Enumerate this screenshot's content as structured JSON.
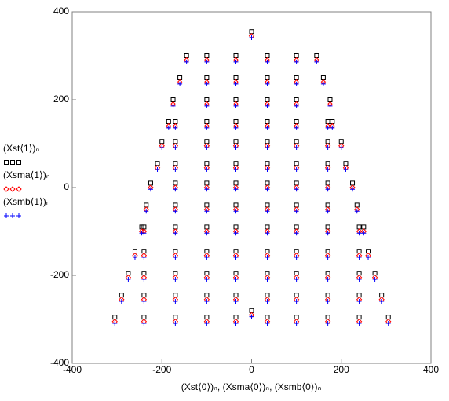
{
  "chart_data": {
    "type": "scatter",
    "x_label": "(Xst⟨0⟩)ₙ, (Xsma⟨0⟩)ₙ, (Xsmb⟨0⟩)ₙ",
    "xlim": [
      -400,
      400
    ],
    "xticks": [
      -400,
      -200,
      0,
      200,
      400
    ],
    "ylim": [
      -400,
      400
    ],
    "yticks": [
      -400,
      -200,
      0,
      200,
      400
    ],
    "series": [
      {
        "name": "(Xst⟨1⟩)ₙ",
        "color": "#000000",
        "marker": "square",
        "x": [
          0,
          -145,
          -100,
          -35,
          35,
          100,
          145,
          -160,
          -100,
          -35,
          35,
          100,
          160,
          -175,
          -100,
          -35,
          35,
          100,
          175,
          -185,
          -170,
          -100,
          -35,
          35,
          100,
          170,
          180,
          -200,
          -170,
          -100,
          -35,
          35,
          100,
          170,
          200,
          -210,
          -170,
          -100,
          -35,
          35,
          100,
          170,
          210,
          -225,
          -170,
          -100,
          -35,
          35,
          100,
          170,
          225,
          -235,
          -170,
          -100,
          -35,
          35,
          100,
          170,
          235,
          -245,
          -240,
          -170,
          -100,
          -35,
          35,
          100,
          170,
          240,
          250,
          -260,
          -240,
          -170,
          -100,
          -35,
          35,
          100,
          170,
          240,
          260,
          -275,
          -240,
          -170,
          -100,
          -35,
          35,
          100,
          170,
          240,
          275,
          -290,
          -240,
          -170,
          -100,
          -35,
          35,
          100,
          170,
          240,
          290,
          -305,
          -240,
          -170,
          -100,
          -35,
          0,
          35,
          100,
          170,
          240,
          305
        ],
        "y": [
          355,
          300,
          300,
          300,
          300,
          300,
          300,
          250,
          250,
          250,
          250,
          250,
          250,
          200,
          200,
          200,
          200,
          200,
          200,
          150,
          150,
          150,
          150,
          150,
          150,
          150,
          150,
          105,
          105,
          105,
          105,
          105,
          105,
          105,
          105,
          55,
          55,
          55,
          55,
          55,
          55,
          55,
          55,
          10,
          10,
          10,
          10,
          10,
          10,
          10,
          10,
          -40,
          -40,
          -40,
          -40,
          -40,
          -40,
          -40,
          -40,
          -90,
          -90,
          -90,
          -90,
          -90,
          -90,
          -90,
          -90,
          -90,
          -90,
          -145,
          -145,
          -145,
          -145,
          -145,
          -145,
          -145,
          -145,
          -145,
          -145,
          -195,
          -195,
          -195,
          -195,
          -195,
          -195,
          -195,
          -195,
          -195,
          -195,
          -245,
          -245,
          -245,
          -245,
          -245,
          -245,
          -245,
          -245,
          -245,
          -245,
          -295,
          -295,
          -295,
          -295,
          -295,
          -280,
          -295,
          -295,
          -295,
          -295,
          -295
        ]
      },
      {
        "name": "(Xsma⟨1⟩)ₙ",
        "color": "#ff0000",
        "marker": "diamond",
        "x": [
          0,
          -145,
          -100,
          -35,
          35,
          100,
          145,
          -160,
          -100,
          -35,
          35,
          100,
          160,
          -175,
          -100,
          -35,
          35,
          100,
          175,
          -185,
          -170,
          -100,
          -35,
          35,
          100,
          170,
          180,
          -200,
          -170,
          -100,
          -35,
          35,
          100,
          170,
          200,
          -210,
          -170,
          -100,
          -35,
          35,
          100,
          170,
          210,
          -225,
          -170,
          -100,
          -35,
          35,
          100,
          170,
          225,
          -235,
          -170,
          -100,
          -35,
          35,
          100,
          170,
          235,
          -245,
          -240,
          -170,
          -100,
          -35,
          35,
          100,
          170,
          240,
          250,
          -260,
          -240,
          -170,
          -100,
          -35,
          35,
          100,
          170,
          240,
          260,
          -275,
          -240,
          -170,
          -100,
          -35,
          35,
          100,
          170,
          240,
          275,
          -290,
          -240,
          -170,
          -100,
          -35,
          35,
          100,
          170,
          240,
          290,
          -305,
          -240,
          -170,
          -100,
          -35,
          0,
          35,
          100,
          170,
          240,
          305
        ],
        "y": [
          345,
          290,
          290,
          290,
          290,
          290,
          290,
          240,
          240,
          240,
          240,
          240,
          240,
          190,
          190,
          190,
          190,
          190,
          190,
          140,
          140,
          140,
          140,
          140,
          140,
          140,
          140,
          95,
          95,
          95,
          95,
          95,
          95,
          95,
          95,
          45,
          45,
          45,
          45,
          45,
          45,
          45,
          45,
          0,
          0,
          0,
          0,
          0,
          0,
          0,
          0,
          -50,
          -50,
          -50,
          -50,
          -50,
          -50,
          -50,
          -50,
          -100,
          -100,
          -100,
          -100,
          -100,
          -100,
          -100,
          -100,
          -100,
          -100,
          -155,
          -155,
          -155,
          -155,
          -155,
          -155,
          -155,
          -155,
          -155,
          -155,
          -205,
          -205,
          -205,
          -205,
          -205,
          -205,
          -205,
          -205,
          -205,
          -205,
          -255,
          -255,
          -255,
          -255,
          -255,
          -255,
          -255,
          -255,
          -255,
          -255,
          -305,
          -305,
          -305,
          -305,
          -305,
          -290,
          -305,
          -305,
          -305,
          -305,
          -305
        ]
      },
      {
        "name": "(Xsmb⟨1⟩)ₙ",
        "color": "#0000ff",
        "marker": "plus",
        "x": [
          0,
          -145,
          -100,
          -35,
          35,
          100,
          145,
          -160,
          -100,
          -35,
          35,
          100,
          160,
          -175,
          -100,
          -35,
          35,
          100,
          175,
          -185,
          -170,
          -100,
          -35,
          35,
          100,
          170,
          180,
          -200,
          -170,
          -100,
          -35,
          35,
          100,
          170,
          200,
          -210,
          -170,
          -100,
          -35,
          35,
          100,
          170,
          210,
          -225,
          -170,
          -100,
          -35,
          35,
          100,
          170,
          225,
          -235,
          -170,
          -100,
          -35,
          35,
          100,
          170,
          235,
          -245,
          -240,
          -170,
          -100,
          -35,
          35,
          100,
          170,
          240,
          250,
          -260,
          -240,
          -170,
          -100,
          -35,
          35,
          100,
          170,
          240,
          260,
          -275,
          -240,
          -170,
          -100,
          -35,
          35,
          100,
          170,
          240,
          275,
          -290,
          -240,
          -170,
          -100,
          -35,
          35,
          100,
          170,
          240,
          290,
          -305,
          -240,
          -170,
          -100,
          -35,
          0,
          35,
          100,
          170,
          240,
          305
        ],
        "y": [
          341,
          286,
          286,
          286,
          286,
          286,
          286,
          236,
          236,
          236,
          236,
          236,
          236,
          186,
          186,
          186,
          186,
          186,
          186,
          136,
          136,
          136,
          136,
          136,
          136,
          136,
          136,
          91,
          91,
          91,
          91,
          91,
          91,
          91,
          91,
          41,
          41,
          41,
          41,
          41,
          41,
          41,
          41,
          -4,
          -4,
          -4,
          -4,
          -4,
          -4,
          -4,
          -4,
          -54,
          -54,
          -54,
          -54,
          -54,
          -54,
          -54,
          -54,
          -104,
          -104,
          -104,
          -104,
          -104,
          -104,
          -104,
          -104,
          -104,
          -104,
          -159,
          -159,
          -159,
          -159,
          -159,
          -159,
          -159,
          -159,
          -159,
          -159,
          -209,
          -209,
          -209,
          -209,
          -209,
          -209,
          -209,
          -209,
          -209,
          -209,
          -259,
          -259,
          -259,
          -259,
          -259,
          -259,
          -259,
          -259,
          -259,
          -259,
          -309,
          -309,
          -309,
          -309,
          -309,
          -294,
          -309,
          -309,
          -309,
          -309,
          -309
        ]
      }
    ]
  }
}
